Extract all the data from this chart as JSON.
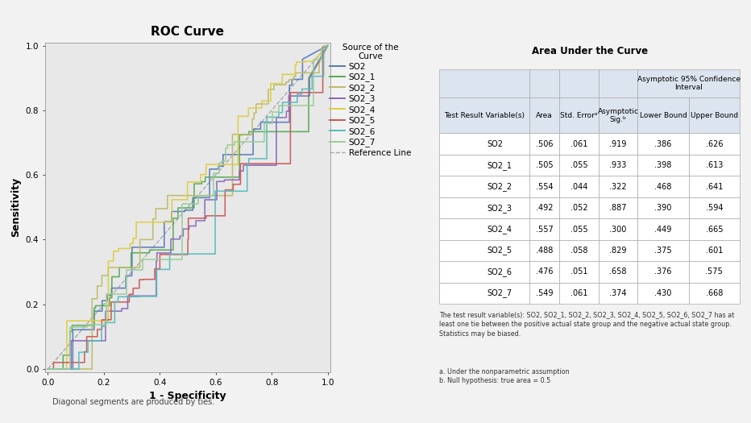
{
  "title": "ROC Curve",
  "xlabel": "1 - Specificity",
  "ylabel": "Sensitivity",
  "footnote": "Diagonal segments are produced by ties.",
  "legend_title": "Source of the\nCurve",
  "curves": [
    {
      "label": "SO2",
      "color": "#5577bb",
      "area": ".506",
      "std_err": ".061",
      "sig": ".919",
      "lower": ".386",
      "upper": ".626"
    },
    {
      "label": "SO2_1",
      "color": "#55aa55",
      "area": ".505",
      "std_err": ".055",
      "sig": ".933",
      "lower": ".398",
      "upper": ".613"
    },
    {
      "label": "SO2_2",
      "color": "#bbbb66",
      "area": ".554",
      "std_err": ".044",
      "sig": ".322",
      "lower": ".468",
      "upper": ".641"
    },
    {
      "label": "SO2_3",
      "color": "#8866bb",
      "area": ".492",
      "std_err": ".052",
      "sig": ".887",
      "lower": ".390",
      "upper": ".594"
    },
    {
      "label": "SO2_4",
      "color": "#ddcc44",
      "area": ".557",
      "std_err": ".055",
      "sig": ".300",
      "lower": ".449",
      "upper": ".665"
    },
    {
      "label": "SO2_5",
      "color": "#cc5555",
      "area": ".488",
      "std_err": ".058",
      "sig": ".829",
      "lower": ".375",
      "upper": ".601"
    },
    {
      "label": "SO2_6",
      "color": "#55bbbb",
      "area": ".476",
      "std_err": ".051",
      "sig": ".658",
      "lower": ".376",
      "upper": ".575"
    },
    {
      "label": "SO2_7",
      "color": "#99cc99",
      "area": ".549",
      "std_err": ".061",
      "sig": ".374",
      "lower": ".430",
      "upper": ".668"
    }
  ],
  "ref_line_color": "#aaaaaa",
  "bg_color": "#e8e8e8",
  "fig_bg": "#f2f2f2",
  "header_bg": "#dce4f0",
  "footnote1": "The test result variable(s): SO2, SO2_1, SO2_2, SO2_3, SO2_4, SO2_5, SO2_6, SO2_7 has at\nleast one tie between the positive actual state group and the negative actual state group.\nStatistics may be biased.",
  "footnote2": "a. Under the nonparametric assumption\nb. Null hypothesis: true area = 0.5"
}
